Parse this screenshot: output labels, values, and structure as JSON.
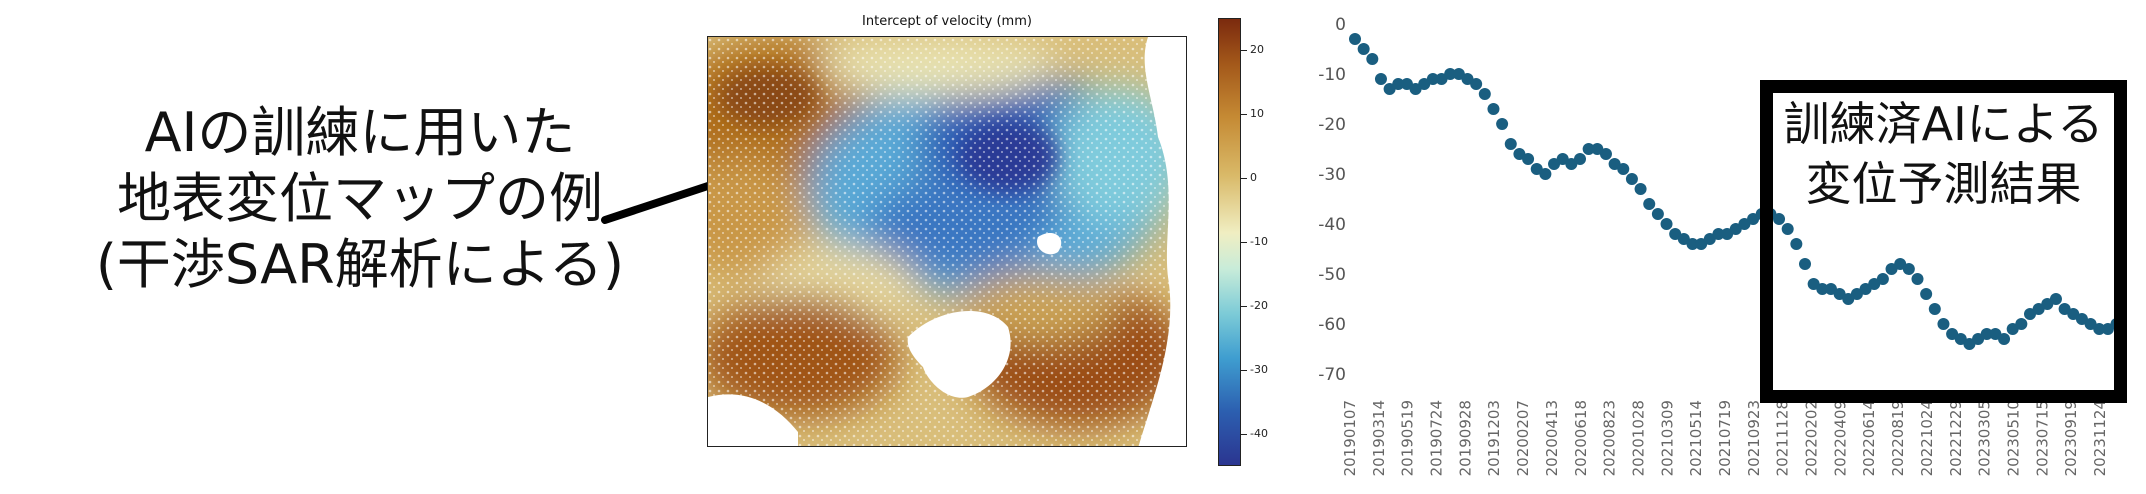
{
  "caption_left": {
    "lines": [
      "AIの訓練に用いた",
      "地表変位マップの例",
      "(干渉SAR解析による)"
    ]
  },
  "caption_right": {
    "lines": [
      "訓練済AIによる",
      "変位予測結果"
    ]
  },
  "chart_data": [
    {
      "type": "heatmap",
      "title": "Intercept of velocity (mm)",
      "colorbar": {
        "ticks": [
          20,
          10,
          0,
          -10,
          -20,
          -30,
          -40
        ],
        "range": [
          -45,
          25
        ],
        "colors": [
          "#7b2a0e",
          "#c58a34",
          "#f0eec2",
          "#7dcbd7",
          "#3f9ed0",
          "#2b3590"
        ]
      }
    },
    {
      "type": "scatter",
      "title": "",
      "xlabel": "",
      "ylabel": "",
      "color": "#1a5e80",
      "ylim": [
        -72,
        0
      ],
      "yticks": [
        0,
        -10,
        -20,
        -30,
        -40,
        -50,
        -60,
        -70
      ],
      "xticks": [
        "20190107",
        "20190314",
        "20190519",
        "20190724",
        "20190928",
        "20191203",
        "20200207",
        "20200413",
        "20200618",
        "20200823",
        "20201028",
        "20210309",
        "20210514",
        "20210719",
        "20210923",
        "20211128",
        "20220202",
        "20220409",
        "20220614",
        "20220819",
        "20221024",
        "20221229",
        "20230305",
        "20230510",
        "20230715",
        "20230919",
        "20231124"
      ],
      "x": [
        0,
        0.3,
        0.6,
        0.9,
        1.2,
        1.5,
        1.8,
        2.1,
        2.4,
        2.7,
        3.0,
        3.3,
        3.6,
        3.9,
        4.2,
        4.5,
        4.8,
        5.1,
        5.4,
        5.7,
        6.0,
        6.3,
        6.6,
        6.9,
        7.2,
        7.5,
        7.8,
        8.1,
        8.4,
        8.7,
        9.0,
        9.3,
        9.6,
        9.9,
        10.2,
        10.5,
        10.8,
        11.1,
        11.4,
        11.7,
        12.0,
        12.3,
        12.6,
        12.9,
        13.2,
        13.5,
        13.8,
        14.1,
        14.4,
        14.7,
        15.0,
        15.3,
        15.6,
        15.9,
        16.2,
        16.5,
        16.8,
        17.1,
        17.4,
        17.7,
        18.0,
        18.3,
        18.6,
        18.9,
        19.2,
        19.5,
        19.8,
        20.1,
        20.4,
        20.7,
        21.0,
        21.3,
        21.6,
        21.9,
        22.2,
        22.5,
        22.8,
        23.1,
        23.4,
        23.7,
        24.0,
        24.3,
        24.6,
        24.9,
        25.2,
        25.5,
        25.8,
        26.1,
        26.4
      ],
      "values": [
        -3,
        -5,
        -7,
        -11,
        -13,
        -12,
        -12,
        -13,
        -12,
        -11,
        -11,
        -10,
        -10,
        -11,
        -12,
        -14,
        -17,
        -20,
        -24,
        -26,
        -27,
        -29,
        -30,
        -28,
        -27,
        -28,
        -27,
        -25,
        -25,
        -26,
        -28,
        -29,
        -31,
        -33,
        -36,
        -38,
        -40,
        -42,
        -43,
        -44,
        -44,
        -43,
        -42,
        -42,
        -41,
        -40,
        -39,
        -38,
        -38,
        -39,
        -41,
        -44,
        -48,
        -52,
        -53,
        -53,
        -54,
        -55,
        -54,
        -53,
        -52,
        -51,
        -49,
        -48,
        -49,
        -51,
        -54,
        -57,
        -60,
        -62,
        -63,
        -64,
        -63,
        -62,
        -62,
        -63,
        -61,
        -60,
        -58,
        -57,
        -56,
        -55,
        -57,
        -58,
        -59,
        -60,
        -61,
        -61,
        -60
      ]
    }
  ]
}
